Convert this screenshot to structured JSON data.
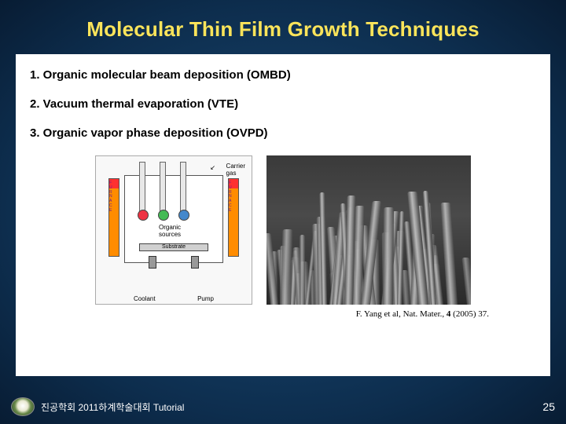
{
  "title": "Molecular Thin Film Growth Techniques",
  "techniques": {
    "t1": "1. Organic molecular beam deposition (OMBD)",
    "t2": "2. Vacuum thermal evaporation (VTE)",
    "t3": "3. Organic vapor phase deposition (OVPD)"
  },
  "diagram": {
    "carrier_label": "Carrier\ngas",
    "furnace_letters": "FURNACE",
    "organic_sources": "Organic\nsources",
    "substrate": "Substrate",
    "coolant": "Coolant",
    "pump": "Pump",
    "colors": {
      "furnace_top": "#ff3030",
      "furnace_body": "#ff8c00",
      "bulb_red": "#ee3344",
      "bulb_green": "#44bb55",
      "bulb_blue": "#4488cc"
    }
  },
  "sem": {
    "background": "#3a3a3a",
    "pillar_count": 60
  },
  "citation": "F. Yang et al, Nat. Mater., 4 (2005) 37.",
  "footer": {
    "text": "진공학회 2011하계학술대회 Tutorial",
    "page": "25"
  },
  "colors": {
    "title": "#fbe45a",
    "bg_center": "#1a4d7a",
    "bg_edge": "#081c33",
    "content_bg": "#ffffff"
  }
}
